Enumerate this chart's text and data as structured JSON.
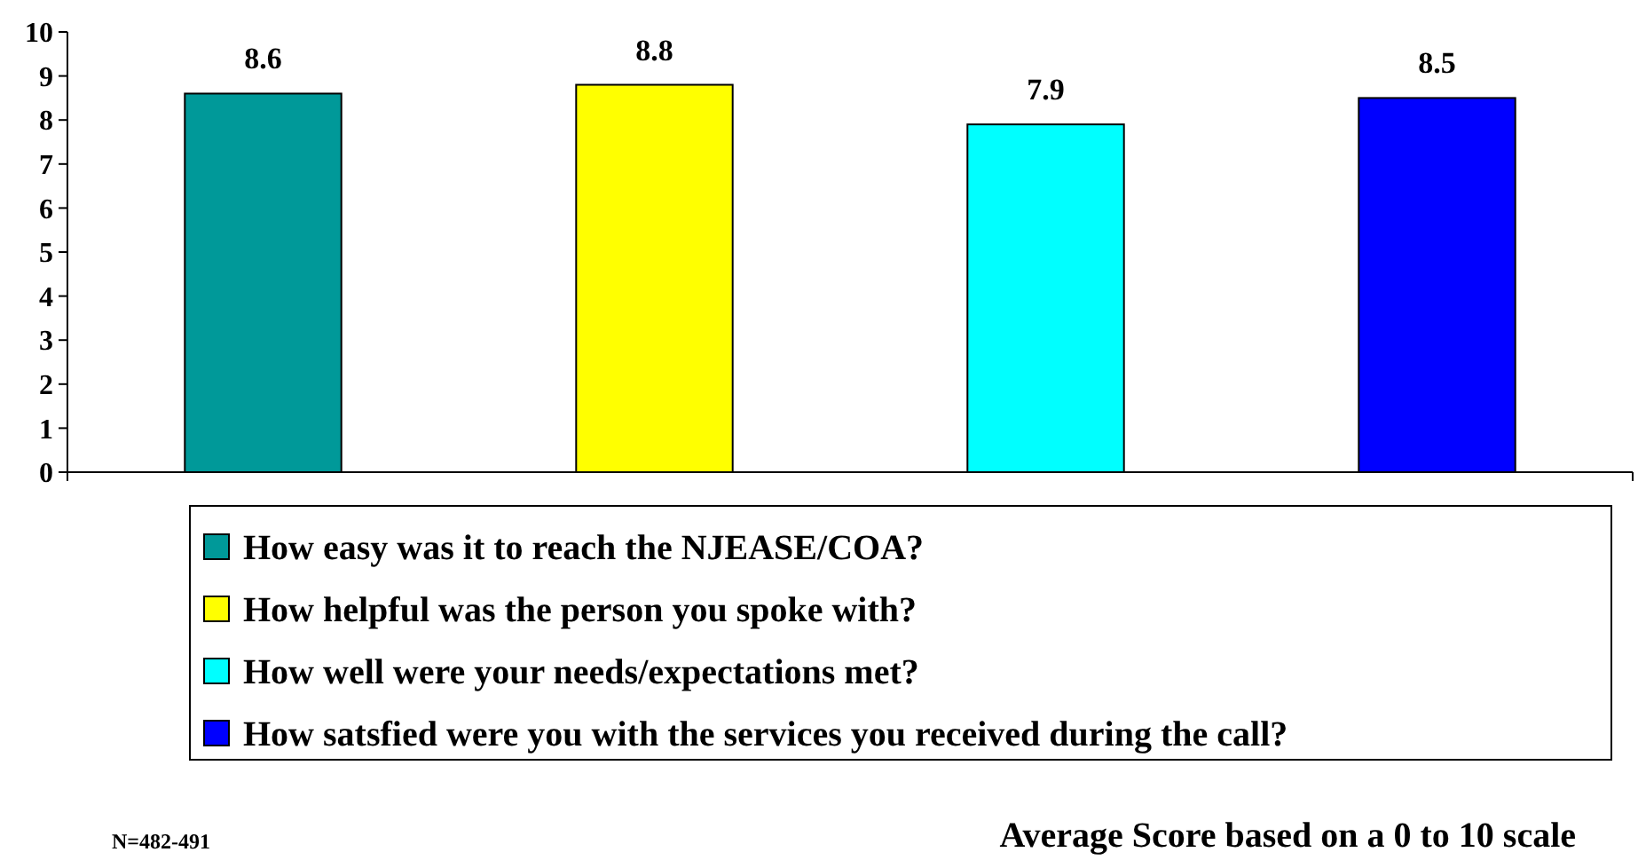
{
  "chart_data": {
    "type": "bar",
    "categories": [
      null
    ],
    "series": [
      {
        "name": "How easy was it to reach the NJEASE/COA?",
        "color": "#009999",
        "values": [
          8.6
        ]
      },
      {
        "name": "How helpful was the person you spoke with?",
        "color": "#ffff00",
        "values": [
          8.8
        ]
      },
      {
        "name": "How well were your needs/expectations met?",
        "color": "#00ffff",
        "values": [
          7.9
        ]
      },
      {
        "name": "How satsfied were you with the services you received during the call?",
        "color": "#0000ff",
        "values": [
          8.5
        ]
      }
    ],
    "ylim": [
      0,
      10
    ],
    "yticks": [
      0,
      1,
      2,
      3,
      4,
      5,
      6,
      7,
      8,
      9,
      10
    ],
    "data_labels": true,
    "legend": "bottom",
    "grid": false,
    "annotations": [
      "N=482-491",
      "Average Score based on a 0 to 10 scale"
    ]
  }
}
